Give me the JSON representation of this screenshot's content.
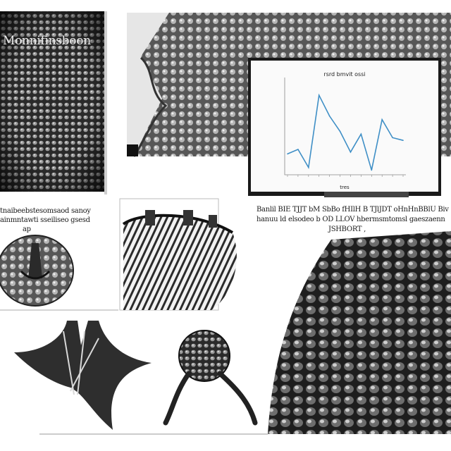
{
  "panels": {
    "top_left": {
      "caption": "Monnifinsboon"
    },
    "left_middle": {
      "caption_line1": "tnaibeebstesomsaod sanoy",
      "caption_line2": "ainmntawti sseiliseo gsesd",
      "caption_line3": "ap"
    },
    "right_middle": {
      "caption_line1": "Banlil BIE TJJT bM SbBo fHIlH B TJlJDT oHnHnBBlU Biv",
      "caption_line2": "hanuu ld elsodeo b OD LLOV hbermsmtomsl gaeszaenn",
      "caption_line3": "JSHBORT ,"
    }
  },
  "chart_data": {
    "type": "line",
    "title": "rsrd bmvit ossi",
    "xlabel": "tres",
    "ylabel": "",
    "x": [
      1,
      2,
      3,
      4,
      5,
      6,
      7,
      8,
      9,
      10,
      11,
      12
    ],
    "values": [
      0.2,
      0.25,
      0.05,
      0.85,
      0.62,
      0.45,
      0.22,
      0.42,
      0.02,
      0.58,
      0.38,
      0.35
    ],
    "ylim": [
      0,
      1
    ],
    "grid": false,
    "line_color": "#3f8fc6"
  },
  "colors": {
    "background": "#ffffff",
    "line": "#3f8fc6",
    "ink": "#1a1a1a"
  }
}
